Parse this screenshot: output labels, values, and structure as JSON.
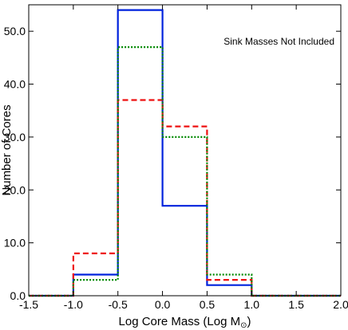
{
  "chart_data": {
    "type": "step-histogram",
    "annotation": "Sink Masses Not Included",
    "xlabel": "Log Core Mass (Log M",
    "xlabel_subscript": "⊙",
    "xlabel_close": ")",
    "ylabel": "Number of Cores",
    "xlim": [
      -1.5,
      2.0
    ],
    "ylim": [
      0,
      55
    ],
    "xticks": [
      -1.5,
      -1.0,
      -0.5,
      0.0,
      0.5,
      1.0,
      1.5,
      2.0
    ],
    "xtick_labels": [
      "-1.5",
      "-1.0",
      "-0.5",
      "0.0",
      "0.5",
      "1.0",
      "1.5",
      "2.0"
    ],
    "yticks": [
      0,
      10,
      20,
      30,
      40,
      50
    ],
    "ytick_labels": [
      "0.0",
      "10.0",
      "20.0",
      "30.0",
      "40.0",
      "50.0"
    ],
    "bin_edges": [
      -1.5,
      -1.0,
      -0.5,
      0.0,
      0.5,
      1.0,
      1.5,
      2.0
    ],
    "series": [
      {
        "color": "#0022dd",
        "dash": "solid",
        "values": [
          0,
          4,
          54,
          17,
          2,
          0,
          0
        ]
      },
      {
        "color": "#ee1111",
        "dash": "dashed",
        "values": [
          0,
          8,
          37,
          32,
          3,
          0,
          0
        ]
      },
      {
        "color": "#008800",
        "dash": "dotted",
        "values": [
          0,
          3,
          47,
          30,
          4,
          0,
          0
        ]
      }
    ]
  }
}
